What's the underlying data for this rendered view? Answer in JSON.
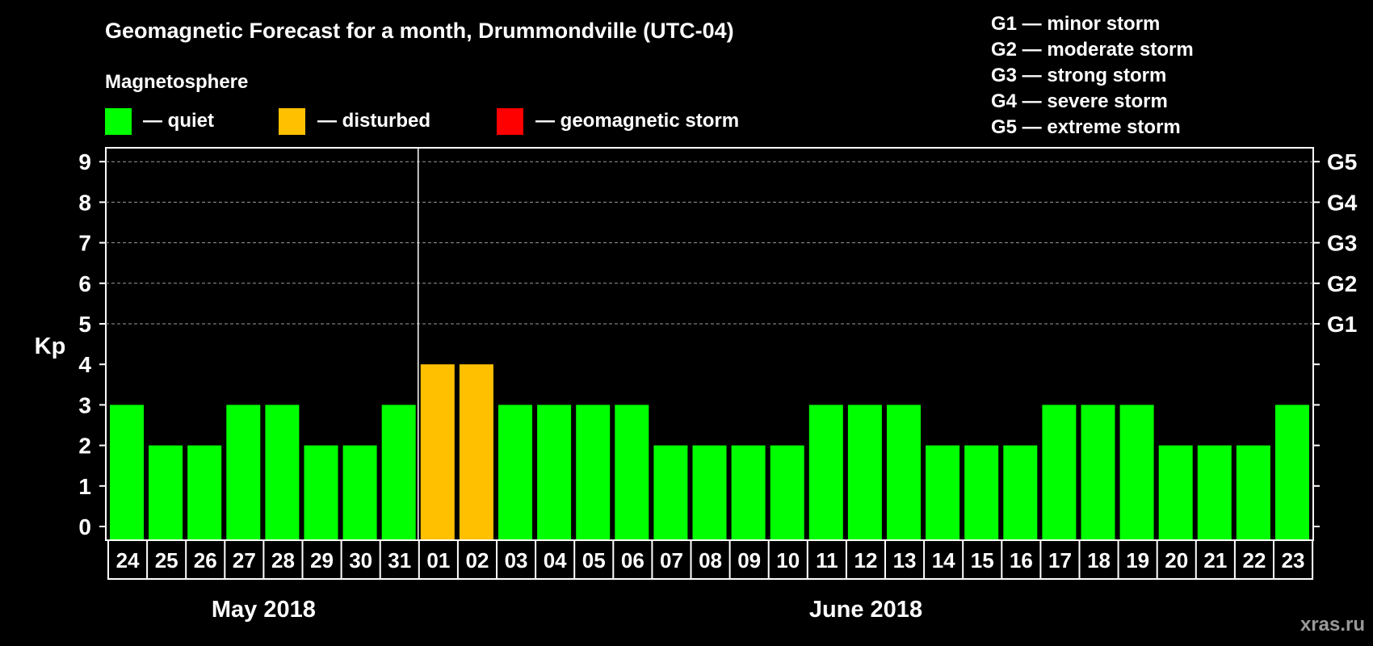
{
  "chart_data": {
    "type": "bar",
    "title": "Geomagnetic Forecast for a month, Drummondville (UTC-04)",
    "ylabel": "Kp",
    "ylim": [
      0,
      9
    ],
    "yticks": [
      "0",
      "1",
      "2",
      "3",
      "4",
      "5",
      "6",
      "7",
      "8",
      "9"
    ],
    "grid": "dashed at 5-9",
    "legend": {
      "title": "Magnetosphere",
      "items": [
        {
          "label": "— quiet",
          "color": "#00ff00"
        },
        {
          "label": "— disturbed",
          "color": "#ffc000"
        },
        {
          "label": "— geomagnetic storm",
          "color": "#ff0000"
        }
      ]
    },
    "storm_scale_legend": [
      "G1 — minor storm",
      "G2 — moderate storm",
      "G3 — strong storm",
      "G4 — severe storm",
      "G5 — extreme storm"
    ],
    "right_axis": [
      {
        "label": "G1",
        "kp": 5
      },
      {
        "label": "G2",
        "kp": 6
      },
      {
        "label": "G3",
        "kp": 7
      },
      {
        "label": "G4",
        "kp": 8
      },
      {
        "label": "G5",
        "kp": 9
      }
    ],
    "categories": [
      "24",
      "25",
      "26",
      "27",
      "28",
      "29",
      "30",
      "31",
      "01",
      "02",
      "03",
      "04",
      "05",
      "06",
      "07",
      "08",
      "09",
      "10",
      "11",
      "12",
      "13",
      "14",
      "15",
      "16",
      "17",
      "18",
      "19",
      "20",
      "21",
      "22",
      "23"
    ],
    "values": [
      3,
      2,
      2,
      3,
      3,
      2,
      2,
      3,
      4,
      4,
      3,
      3,
      3,
      3,
      2,
      2,
      2,
      2,
      3,
      3,
      3,
      2,
      2,
      2,
      3,
      3,
      3,
      2,
      2,
      2,
      3
    ],
    "colors": {
      "quiet": "#00ff00",
      "disturbed": "#ffc000",
      "storm": "#ff0000"
    },
    "months": [
      {
        "label": "May 2018",
        "start": 0,
        "end": 7
      },
      {
        "label": "June 2018",
        "start": 8,
        "end": 30
      }
    ],
    "month_divider_after": 7
  },
  "watermark": "xras.ru"
}
